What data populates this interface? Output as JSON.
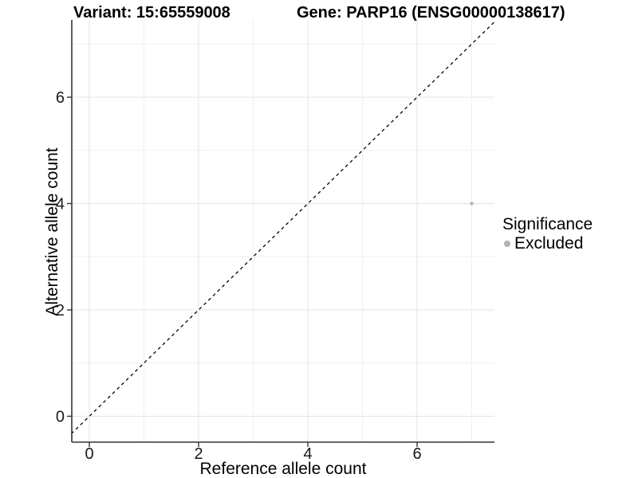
{
  "titles": {
    "variant": "Variant: 15:65559008",
    "gene": "Gene: PARP16 (ENSG00000138617)"
  },
  "axes": {
    "x_label": "Reference allele count",
    "y_label": "Alternative allele count"
  },
  "legend": {
    "title": "Significance",
    "items": [
      {
        "label": "Excluded",
        "color": "#b3b3b3"
      }
    ]
  },
  "colors": {
    "background": "#ffffff",
    "axis_line": "#333333",
    "tick_mark": "#333333",
    "tick_label": "#1a1a1a",
    "grid_major": "#e3e3e3",
    "grid_minor": "#f0f0f0",
    "identity_line": "#000000",
    "point": "#b3b3b3"
  },
  "chart_data": {
    "type": "scatter",
    "title_left": "Variant: 15:65559008",
    "title_right": "Gene: PARP16 (ENSG00000138617)",
    "xlabel": "Reference allele count",
    "ylabel": "Alternative allele count",
    "xlim": [
      -0.33,
      7.42
    ],
    "ylim": [
      -0.49,
      7.46
    ],
    "x_major_ticks": [
      0,
      2,
      4,
      6
    ],
    "y_major_ticks": [
      0,
      2,
      4,
      6
    ],
    "x_minor_gridlines": [
      1,
      3,
      5,
      7
    ],
    "y_minor_gridlines": [
      1,
      3,
      5,
      7
    ],
    "grid": "on",
    "legend_position": "right",
    "series": [
      {
        "name": "Excluded",
        "color": "#b3b3b3",
        "points": [
          {
            "x": 7,
            "y": 4
          }
        ]
      }
    ],
    "reference_line": {
      "kind": "identity",
      "equation": "y = x",
      "style": "dashed",
      "color": "#000000"
    }
  }
}
